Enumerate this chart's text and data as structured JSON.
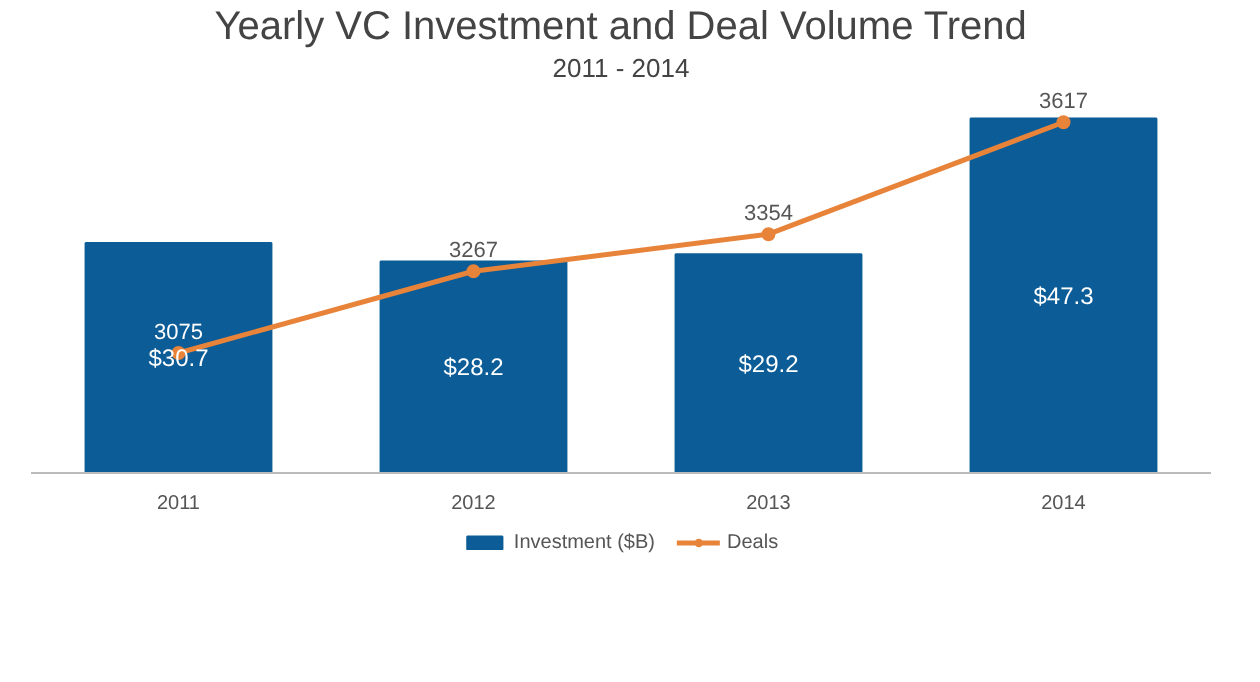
{
  "chart_data": {
    "type": "bar",
    "title": "Yearly VC Investment and Deal Volume Trend",
    "subtitle": "2011 - 2014",
    "categories": [
      "2011",
      "2012",
      "2013",
      "2014"
    ],
    "series": [
      {
        "name": "Investment ($B)",
        "color": "#0b5c97",
        "values": [
          30.7,
          28.2,
          29.2,
          47.3
        ],
        "value_labels": [
          "$30.7",
          "$28.2",
          "$29.2",
          "$47.3"
        ]
      },
      {
        "name": "Deals",
        "type": "line",
        "axis": "y2",
        "color": "#e8833a",
        "values": [
          3075,
          3267,
          3354,
          3617
        ],
        "value_labels": [
          "3075",
          "3267",
          "3354",
          "3617"
        ],
        "marker": "circle"
      }
    ],
    "legend": "bottom"
  }
}
